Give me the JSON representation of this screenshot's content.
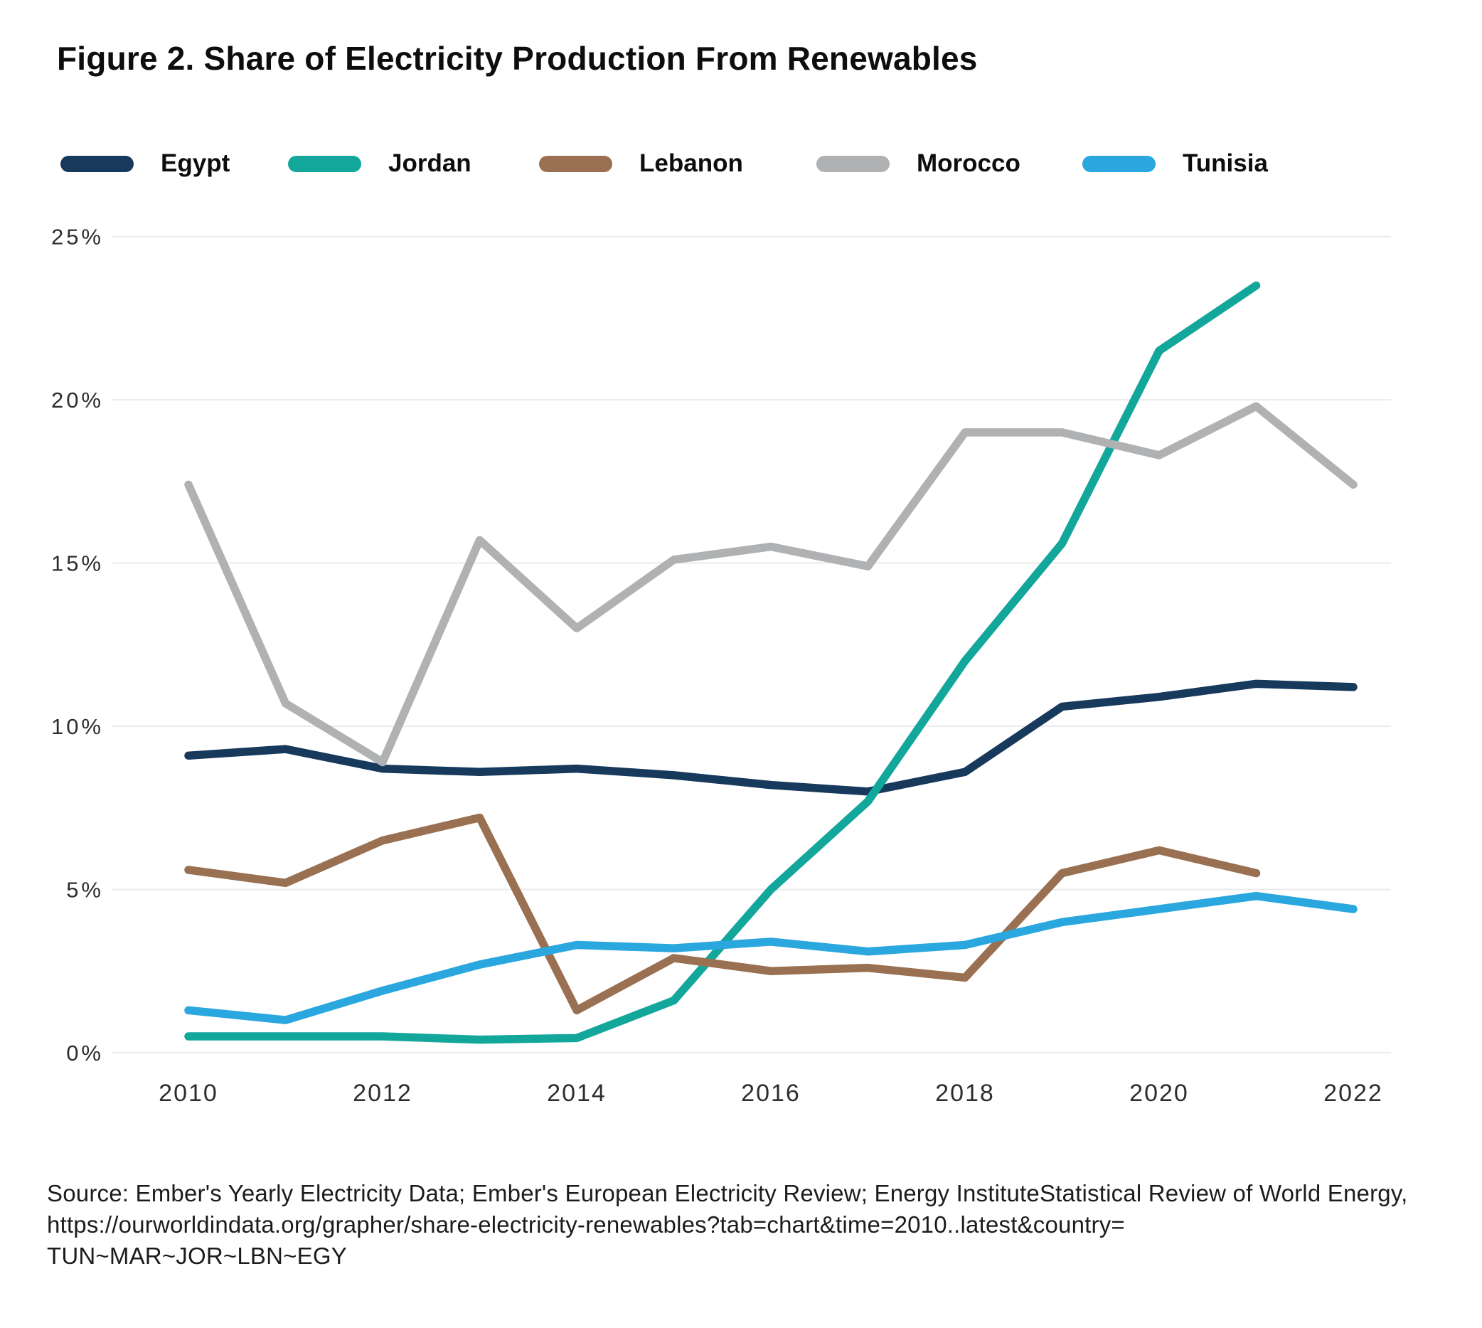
{
  "figure": {
    "title": "Figure 2. Share of Electricity Production From Renewables",
    "source_lines": [
      "Source: Ember's Yearly Electricity Data; Ember's European Electricity Review; Energy InstituteStatistical Review of World Energy,",
      "https://ourworldindata.org/grapher/share-electricity-renewables?tab=chart&time=2010..latest&country=",
      "TUN~MAR~JOR~LBN~EGY"
    ]
  },
  "chart_data": {
    "type": "line",
    "title": "Figure 2. Share of Electricity Production From Renewables",
    "xlabel": "",
    "ylabel": "",
    "x": [
      2010,
      2011,
      2012,
      2013,
      2014,
      2015,
      2016,
      2017,
      2018,
      2019,
      2020,
      2021,
      2022
    ],
    "x_tick_labels": [
      "2010",
      "2012",
      "2014",
      "2016",
      "2018",
      "2020",
      "2022"
    ],
    "y_ticks": [
      0,
      5,
      10,
      15,
      20,
      25
    ],
    "y_tick_suffix": "%",
    "ylim": [
      0,
      25
    ],
    "xlim": [
      2010,
      2022
    ],
    "grid": "horizontal",
    "legend_position": "top",
    "gridline_color": "#EBEBEB",
    "tick_text_color": "#2d2d2d",
    "series": [
      {
        "name": "Egypt",
        "color": "#17395C",
        "values": [
          9.1,
          9.3,
          8.7,
          8.6,
          8.7,
          8.5,
          8.2,
          8.0,
          8.6,
          10.6,
          10.9,
          11.3,
          11.2
        ]
      },
      {
        "name": "Jordan",
        "color": "#13A79C",
        "values": [
          0.5,
          0.5,
          0.5,
          0.4,
          0.45,
          1.6,
          5.0,
          7.7,
          12.0,
          15.6,
          21.5,
          23.5,
          null
        ]
      },
      {
        "name": "Lebanon",
        "color": "#997051",
        "values": [
          5.6,
          5.2,
          6.5,
          7.2,
          1.3,
          2.9,
          2.5,
          2.6,
          2.3,
          5.5,
          6.2,
          5.5,
          null
        ]
      },
      {
        "name": "Morocco",
        "color": "#AFB1B3",
        "values": [
          17.4,
          10.7,
          8.9,
          15.7,
          13.0,
          15.1,
          15.5,
          14.9,
          19.0,
          19.0,
          18.3,
          19.8,
          17.4
        ]
      },
      {
        "name": "Tunisia",
        "color": "#2AA7DE",
        "values": [
          1.3,
          1.0,
          1.9,
          2.7,
          3.3,
          3.2,
          3.4,
          3.1,
          3.3,
          4.0,
          4.4,
          4.8,
          4.4
        ]
      }
    ]
  }
}
